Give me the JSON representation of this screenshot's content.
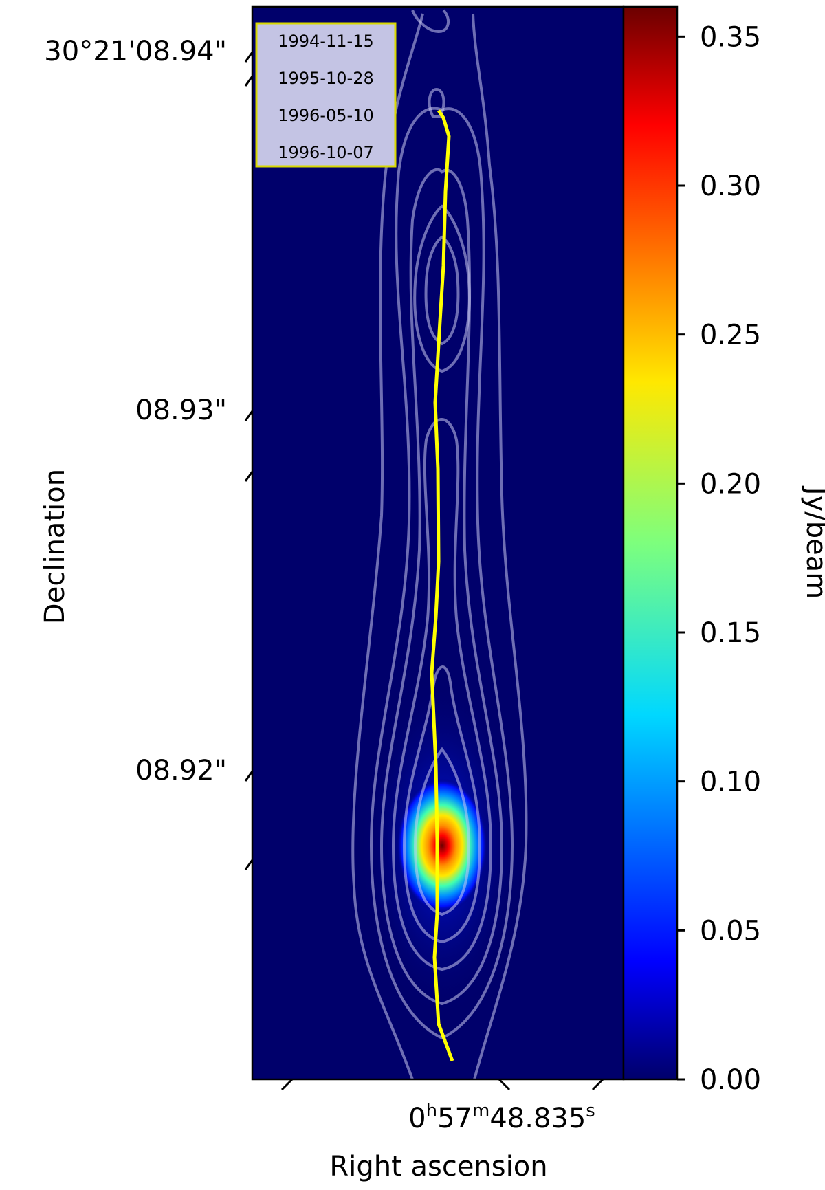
{
  "chart_data": {
    "type": "heatmap",
    "xlabel": "Right ascension",
    "ylabel": "Declination",
    "x_ticks": [
      {
        "label_main": "0",
        "sup1": "h",
        "mid": "57",
        "sup2": "m",
        "tail": "48.835",
        "sup3": "s"
      }
    ],
    "y_ticks": [
      {
        "label": "30°21'08.94\"",
        "value": 8.94
      },
      {
        "label": "08.93\"",
        "value": 8.93
      },
      {
        "label": "08.92\"",
        "value": 8.92
      }
    ],
    "ylim_arcsec": [
      8.9135,
      8.9425
    ],
    "colorbar": {
      "label": "Jy/beam",
      "colormap": "jet",
      "range": [
        0.0,
        0.36
      ],
      "ticks": [
        {
          "label": "0.00",
          "value": 0.0
        },
        {
          "label": "0.05",
          "value": 0.05
        },
        {
          "label": "0.10",
          "value": 0.1
        },
        {
          "label": "0.15",
          "value": 0.15
        },
        {
          "label": "0.20",
          "value": 0.2
        },
        {
          "label": "0.25",
          "value": 0.25
        },
        {
          "label": "0.30",
          "value": 0.3
        },
        {
          "label": "0.35",
          "value": 0.35
        }
      ]
    },
    "peak_flux": 0.35,
    "peak_dec_arcsec": 8.9179,
    "legend": {
      "placement": "top-left",
      "entries": [
        "1994-11-15",
        "1995-10-28",
        "1996-05-10",
        "1996-10-07"
      ]
    },
    "ridge_line": {
      "color": "#ffff00",
      "dec_arcsec": [
        8.9397,
        8.9395,
        8.939,
        8.9375,
        8.9355,
        8.934,
        8.9318,
        8.93,
        8.9275,
        8.926,
        8.9245,
        8.922,
        8.92,
        8.918,
        8.9168,
        8.915,
        8.9145,
        8.914
      ]
    },
    "contour_color": "#c8c8f0",
    "background_color": "#00006b"
  }
}
